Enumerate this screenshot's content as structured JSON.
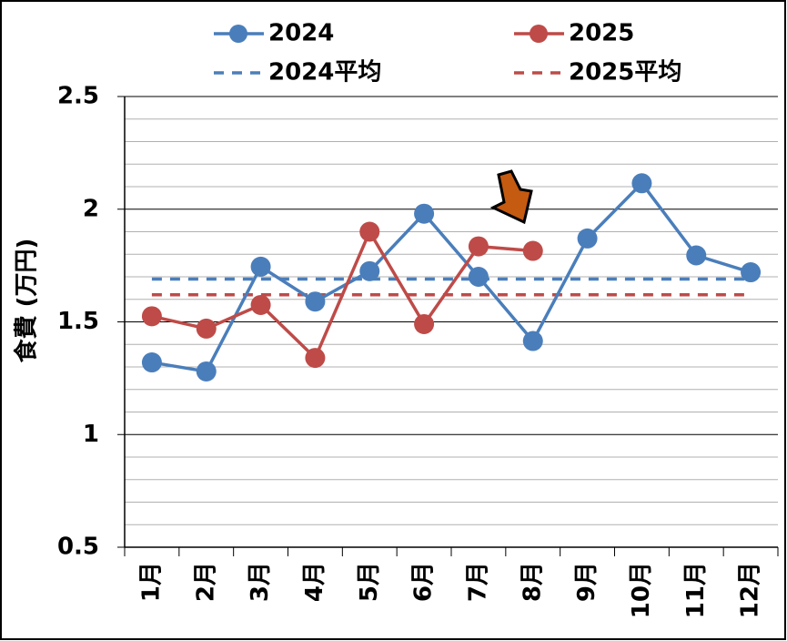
{
  "chart_data": {
    "type": "line",
    "y_label": "食費 (万円)",
    "categories": [
      "1月",
      "2月",
      "3月",
      "4月",
      "5月",
      "6月",
      "7月",
      "8月",
      "9月",
      "10月",
      "11月",
      "12月"
    ],
    "series": [
      {
        "name": "2024",
        "color": "#4a7ebb",
        "values": [
          1.32,
          1.28,
          1.745,
          1.59,
          1.725,
          1.98,
          1.7,
          1.415,
          1.87,
          2.115,
          1.795,
          1.72
        ]
      },
      {
        "name": "2025",
        "color": "#be4b48",
        "values": [
          1.525,
          1.47,
          1.575,
          1.34,
          1.9,
          1.49,
          1.835,
          1.815,
          null,
          null,
          null,
          null
        ]
      }
    ],
    "averages": [
      {
        "name": "2024平均",
        "color": "#4a7ebb",
        "value": 1.69
      },
      {
        "name": "2025平均",
        "color": "#be4b48",
        "value": 1.62
      }
    ],
    "ylim": [
      0.5,
      2.5
    ],
    "yticks": [
      0.5,
      1,
      1.5,
      2,
      2.5
    ],
    "minor_yticks": [
      0.6,
      0.7,
      0.8,
      0.9,
      1.1,
      1.2,
      1.3,
      1.4,
      1.6,
      1.7,
      1.8,
      1.9,
      2.1,
      2.2,
      2.3,
      2.4
    ],
    "grid": true
  }
}
